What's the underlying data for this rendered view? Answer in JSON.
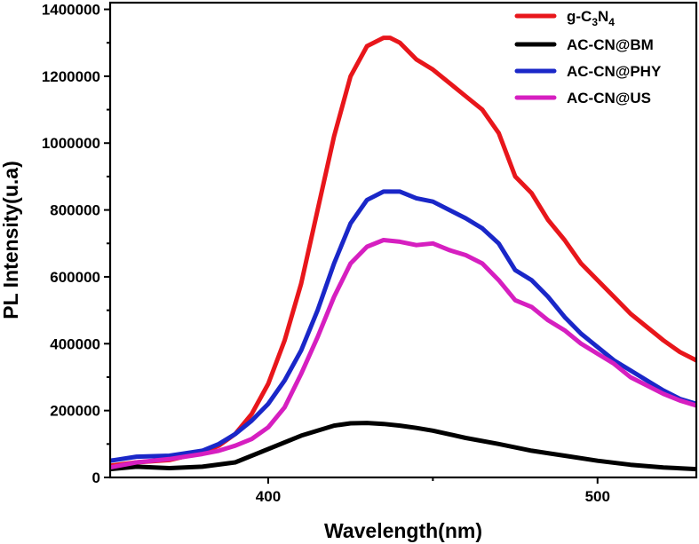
{
  "chart_data": {
    "type": "line",
    "title": "",
    "xlabel": "Wavelength(nm)",
    "ylabel": "PL Intensity(u.a)",
    "xlim": [
      352,
      530
    ],
    "ylim": [
      0,
      1420000
    ],
    "xticks": [
      400,
      500
    ],
    "xtick_labels": [
      "400",
      "500"
    ],
    "yticks": [
      0,
      200000,
      400000,
      600000,
      800000,
      1000000,
      1200000,
      1400000
    ],
    "ytick_labels": [
      "0",
      "200000",
      "400000",
      "600000",
      "800000",
      "1000000",
      "1200000",
      "1400000"
    ],
    "legend_position": "top-right",
    "grid": false,
    "series": [
      {
        "name": "g-C3N4",
        "legend_main": "g-C",
        "legend_sub1": "3",
        "legend_mid": "N",
        "legend_sub2": "4",
        "color": "#e8161b",
        "x": [
          352,
          360,
          370,
          380,
          385,
          390,
          395,
          400,
          405,
          410,
          415,
          420,
          425,
          430,
          435,
          437,
          440,
          445,
          450,
          455,
          460,
          465,
          470,
          475,
          480,
          485,
          490,
          495,
          500,
          505,
          510,
          515,
          520,
          525,
          530
        ],
        "y": [
          35000,
          45000,
          52000,
          75000,
          95000,
          130000,
          190000,
          280000,
          410000,
          580000,
          800000,
          1020000,
          1200000,
          1290000,
          1315000,
          1315000,
          1300000,
          1250000,
          1220000,
          1180000,
          1140000,
          1100000,
          1030000,
          900000,
          850000,
          770000,
          710000,
          640000,
          590000,
          540000,
          490000,
          450000,
          410000,
          375000,
          350000
        ]
      },
      {
        "name": "AC-CN@BM",
        "color": "#000000",
        "x": [
          352,
          360,
          370,
          380,
          390,
          400,
          410,
          420,
          425,
          430,
          435,
          440,
          445,
          450,
          460,
          470,
          480,
          490,
          500,
          510,
          520,
          530
        ],
        "y": [
          25000,
          32000,
          28000,
          32000,
          45000,
          85000,
          125000,
          155000,
          162000,
          163000,
          160000,
          155000,
          148000,
          140000,
          118000,
          100000,
          80000,
          65000,
          50000,
          38000,
          30000,
          25000
        ],
        "legend_label": "AC-CN@BM"
      },
      {
        "name": "AC-CN@PHY",
        "color": "#1a27c8",
        "x": [
          352,
          360,
          370,
          380,
          385,
          390,
          395,
          400,
          405,
          410,
          415,
          420,
          425,
          430,
          435,
          440,
          445,
          450,
          455,
          460,
          465,
          470,
          475,
          480,
          485,
          490,
          495,
          500,
          505,
          510,
          515,
          520,
          525,
          530
        ],
        "y": [
          50000,
          62000,
          65000,
          80000,
          100000,
          130000,
          170000,
          220000,
          290000,
          380000,
          500000,
          640000,
          760000,
          830000,
          855000,
          855000,
          835000,
          825000,
          800000,
          775000,
          745000,
          700000,
          620000,
          590000,
          540000,
          480000,
          430000,
          390000,
          350000,
          320000,
          290000,
          260000,
          235000,
          220000
        ],
        "legend_label": "AC-CN@PHY"
      },
      {
        "name": "AC-CN@US",
        "color": "#d61fc0",
        "x": [
          352,
          360,
          370,
          380,
          385,
          390,
          395,
          400,
          405,
          410,
          415,
          420,
          425,
          430,
          435,
          440,
          445,
          450,
          455,
          460,
          465,
          470,
          475,
          480,
          485,
          490,
          495,
          500,
          505,
          510,
          515,
          520,
          525,
          530
        ],
        "y": [
          30000,
          45000,
          55000,
          70000,
          80000,
          95000,
          115000,
          150000,
          210000,
          310000,
          420000,
          540000,
          640000,
          690000,
          710000,
          705000,
          695000,
          700000,
          680000,
          665000,
          640000,
          590000,
          530000,
          510000,
          470000,
          440000,
          400000,
          370000,
          340000,
          300000,
          275000,
          250000,
          230000,
          215000
        ],
        "legend_label": "AC-CN@US"
      }
    ]
  }
}
